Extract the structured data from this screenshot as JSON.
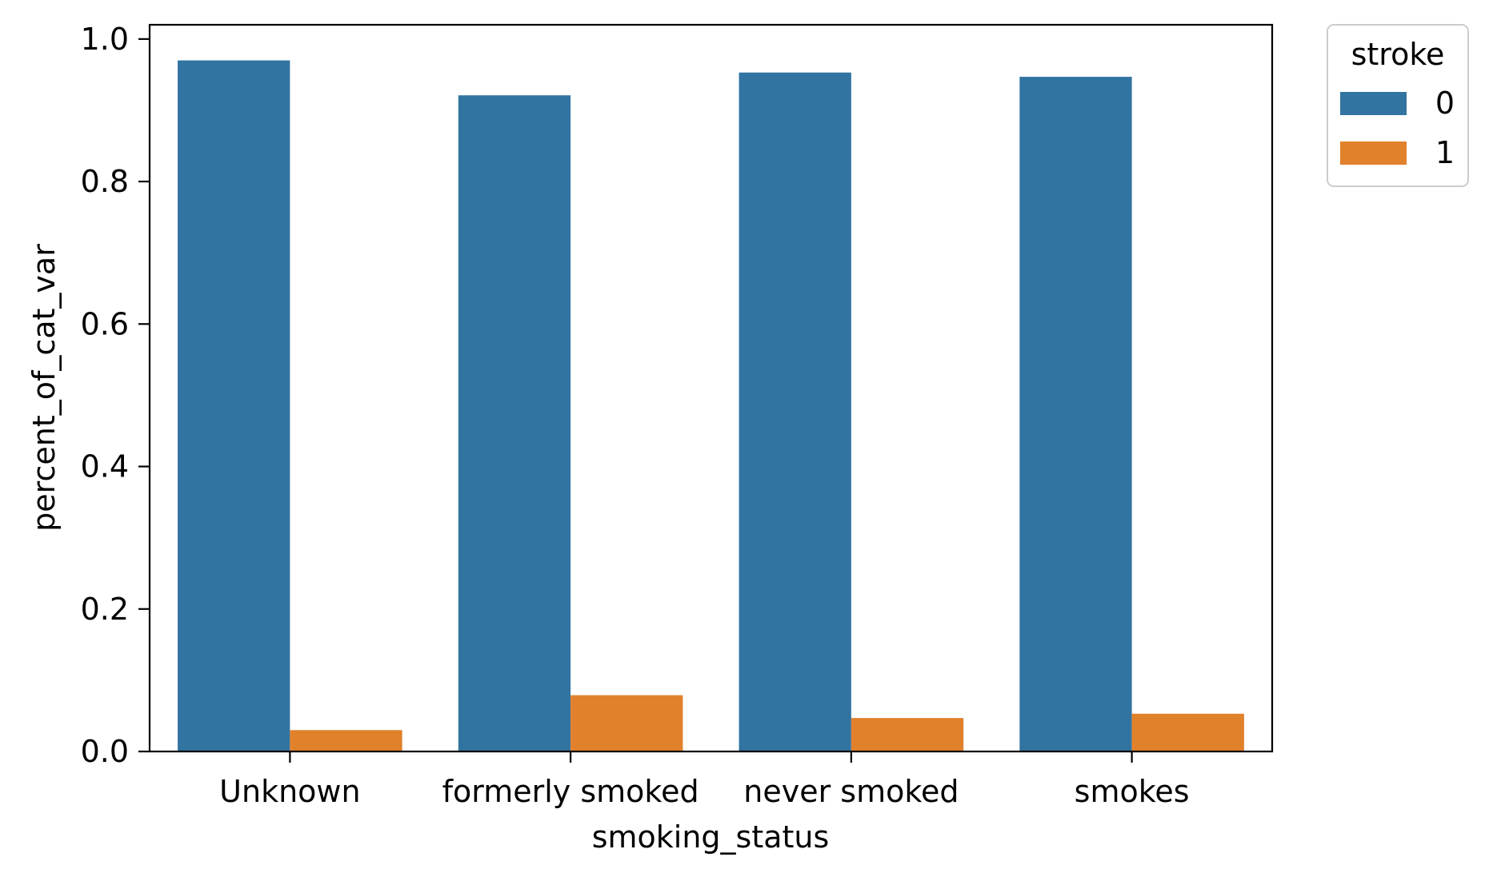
{
  "chart_data": {
    "type": "bar",
    "categories": [
      "Unknown",
      "formerly smoked",
      "never smoked",
      "smokes"
    ],
    "series": [
      {
        "name": "0",
        "values": [
          0.97,
          0.921,
          0.953,
          0.947
        ],
        "color": "#3274a1"
      },
      {
        "name": "1",
        "values": [
          0.03,
          0.079,
          0.047,
          0.053
        ],
        "color": "#e1812c"
      }
    ],
    "xlabel": "smoking_status",
    "ylabel": "percent_of_cat_var",
    "ylim": [
      0,
      1.02
    ],
    "yticks": [
      "0.0",
      "0.2",
      "0.4",
      "0.6",
      "0.8",
      "1.0"
    ],
    "ytick_values": [
      0,
      0.2,
      0.4,
      0.6,
      0.8,
      1.0
    ],
    "legend": {
      "title": "stroke",
      "placement": "outside-top-right"
    },
    "grid": false
  }
}
